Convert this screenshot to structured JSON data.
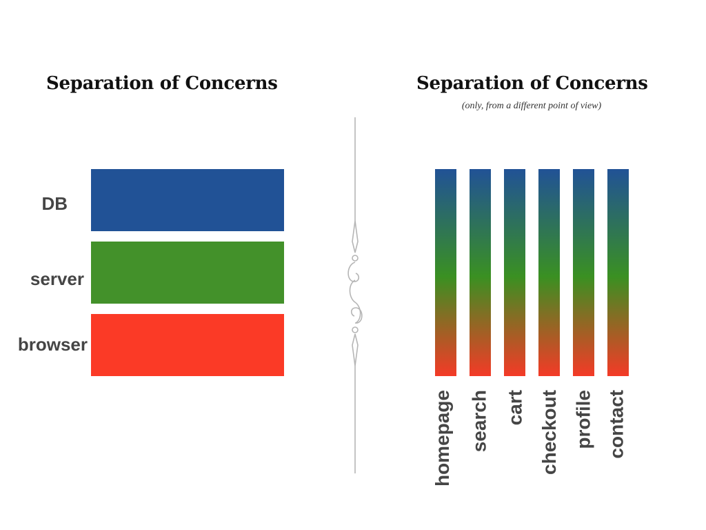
{
  "left_panel": {
    "title": "Separation of Concerns",
    "layers": [
      {
        "label": "DB",
        "color": "#215296"
      },
      {
        "label": "server",
        "color": "#43912a"
      },
      {
        "label": "browser",
        "color": "#fb3a26"
      }
    ]
  },
  "right_panel": {
    "title": "Separation of Concerns",
    "subtitle": "(only, from a different point of view)",
    "gradient": {
      "top": "#215296",
      "middle": "#3a9022",
      "bottom": "#f43a27"
    },
    "columns": [
      "homepage",
      "search",
      "cart",
      "checkout",
      "profile",
      "contact"
    ]
  },
  "divider": {
    "color": "#b5b5b5"
  }
}
